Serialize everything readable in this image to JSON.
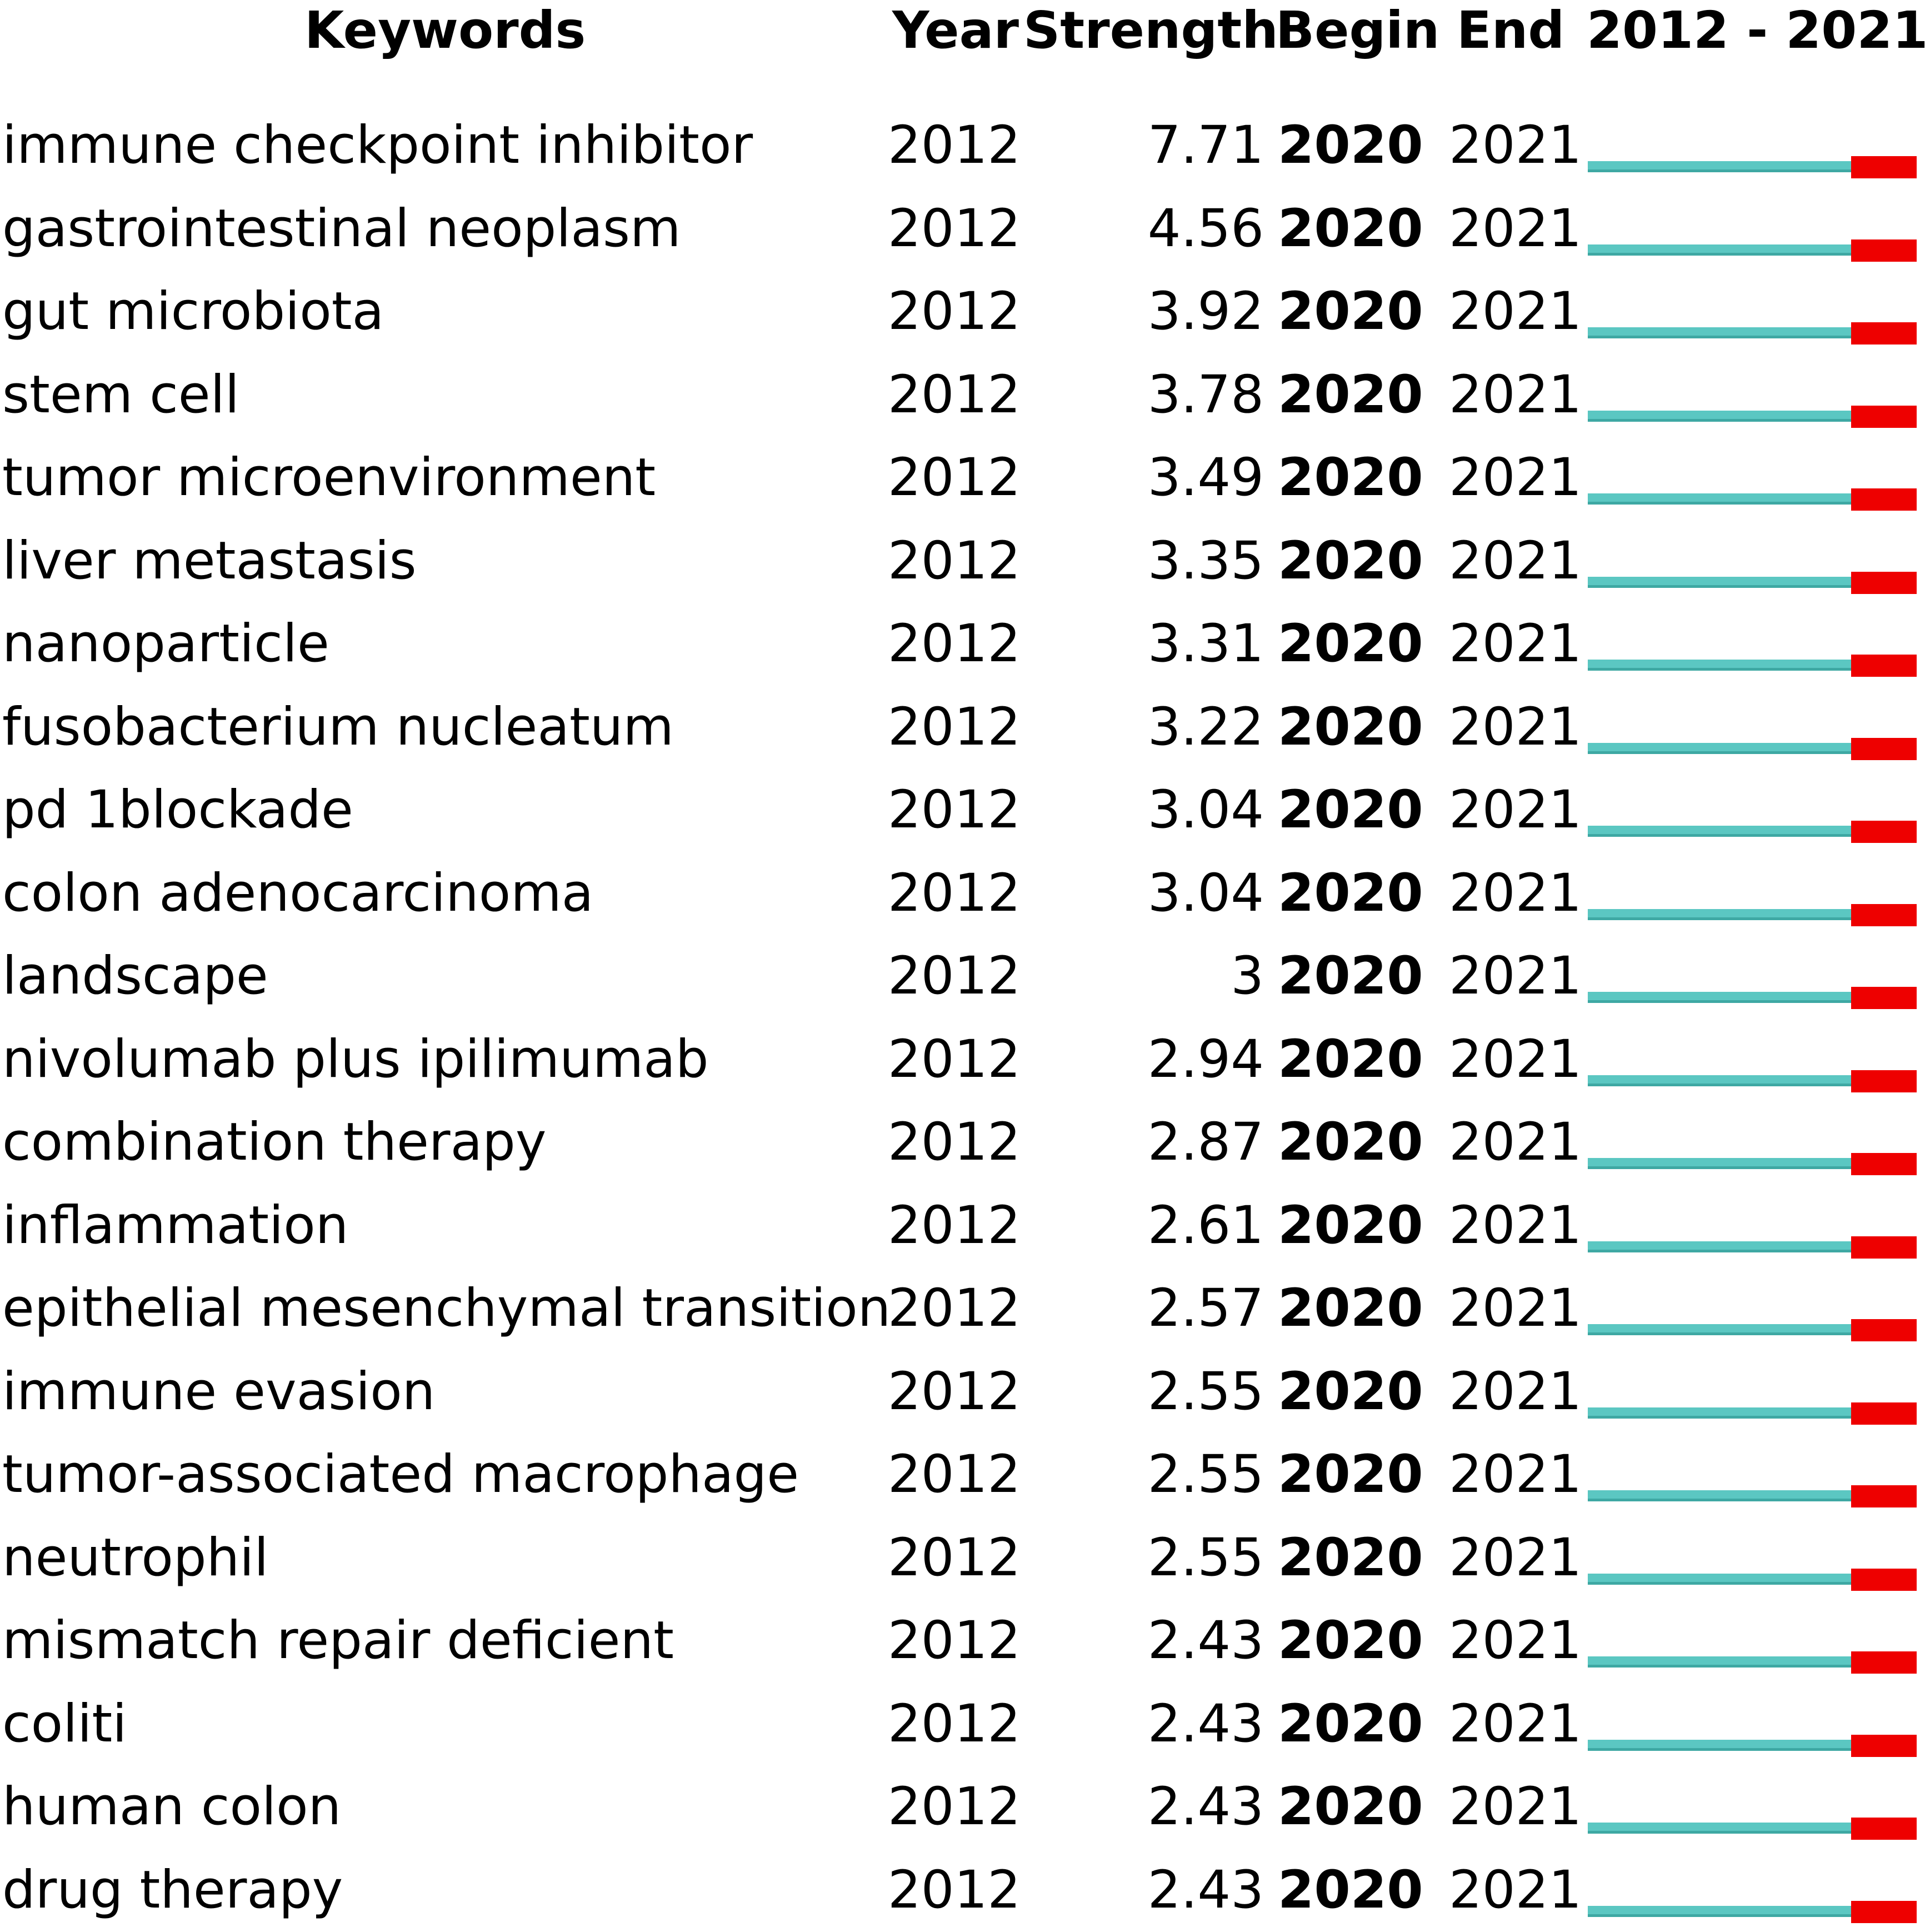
{
  "colors": {
    "baseline_bar": "#5bc7c2",
    "burst_bar": "#ee0000",
    "text": "#000000"
  },
  "header": {
    "keywords": "Keywords",
    "year": "Year",
    "strength": "Strength",
    "begin": "Begin",
    "end": "End",
    "range": "2012 - 2021"
  },
  "chart_data": {
    "type": "table",
    "timeline_start": 2012,
    "timeline_end": 2021,
    "columns": [
      "Keywords",
      "Year",
      "Strength",
      "Begin",
      "End",
      "2012 - 2021"
    ],
    "rows": [
      {
        "keyword": "immune checkpoint inhibitor",
        "year": "2012",
        "strength": "7.71",
        "begin": "2020",
        "end": "2021"
      },
      {
        "keyword": "gastrointestinal neoplasm",
        "year": "2012",
        "strength": "4.56",
        "begin": "2020",
        "end": "2021"
      },
      {
        "keyword": "gut microbiota",
        "year": "2012",
        "strength": "3.92",
        "begin": "2020",
        "end": "2021"
      },
      {
        "keyword": "stem cell",
        "year": "2012",
        "strength": "3.78",
        "begin": "2020",
        "end": "2021"
      },
      {
        "keyword": "tumor microenvironment",
        "year": "2012",
        "strength": "3.49",
        "begin": "2020",
        "end": "2021"
      },
      {
        "keyword": "liver metastasis",
        "year": "2012",
        "strength": "3.35",
        "begin": "2020",
        "end": "2021"
      },
      {
        "keyword": "nanoparticle",
        "year": "2012",
        "strength": "3.31",
        "begin": "2020",
        "end": "2021"
      },
      {
        "keyword": "fusobacterium nucleatum",
        "year": "2012",
        "strength": "3.22",
        "begin": "2020",
        "end": "2021"
      },
      {
        "keyword": "pd 1blockade",
        "year": "2012",
        "strength": "3.04",
        "begin": "2020",
        "end": "2021"
      },
      {
        "keyword": "colon adenocarcinoma",
        "year": "2012",
        "strength": "3.04",
        "begin": "2020",
        "end": "2021"
      },
      {
        "keyword": "landscape",
        "year": "2012",
        "strength": "3",
        "begin": "2020",
        "end": "2021"
      },
      {
        "keyword": "nivolumab plus ipilimumab",
        "year": "2012",
        "strength": "2.94",
        "begin": "2020",
        "end": "2021"
      },
      {
        "keyword": "combination therapy",
        "year": "2012",
        "strength": "2.87",
        "begin": "2020",
        "end": "2021"
      },
      {
        "keyword": "inflammation",
        "year": "2012",
        "strength": "2.61",
        "begin": "2020",
        "end": "2021"
      },
      {
        "keyword": "epithelial mesenchymal transition",
        "year": "2012",
        "strength": "2.57",
        "begin": "2020",
        "end": "2021"
      },
      {
        "keyword": "immune evasion",
        "year": "2012",
        "strength": "2.55",
        "begin": "2020",
        "end": "2021"
      },
      {
        "keyword": "tumor-associated macrophage",
        "year": "2012",
        "strength": "2.55",
        "begin": "2020",
        "end": "2021"
      },
      {
        "keyword": "neutrophil",
        "year": "2012",
        "strength": "2.55",
        "begin": "2020",
        "end": "2021"
      },
      {
        "keyword": "mismatch repair deficient",
        "year": "2012",
        "strength": "2.43",
        "begin": "2020",
        "end": "2021"
      },
      {
        "keyword": "coliti",
        "year": "2012",
        "strength": "2.43",
        "begin": "2020",
        "end": "2021"
      },
      {
        "keyword": "human colon",
        "year": "2012",
        "strength": "2.43",
        "begin": "2020",
        "end": "2021"
      },
      {
        "keyword": "drug therapy",
        "year": "2012",
        "strength": "2.43",
        "begin": "2020",
        "end": "2021"
      }
    ]
  }
}
